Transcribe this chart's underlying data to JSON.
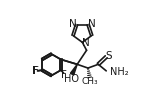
{
  "bg_color": "#ffffff",
  "line_color": "#1a1a1a",
  "lw": 1.2,
  "fs": 6.5,
  "figsize": [
    1.46,
    1.09
  ],
  "dpi": 100,
  "xlim": [
    -0.05,
    1.05
  ],
  "ylim": [
    -0.05,
    1.1
  ]
}
